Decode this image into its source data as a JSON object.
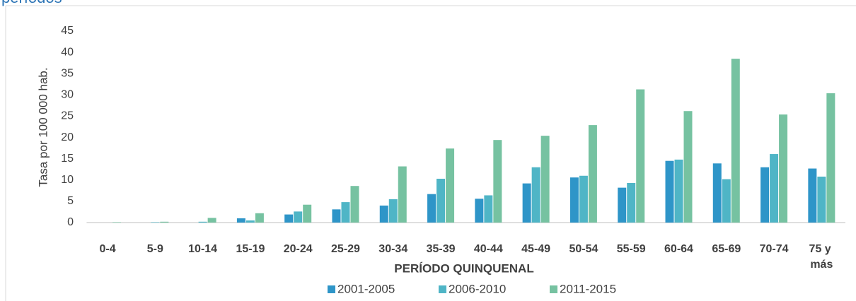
{
  "chart_data": {
    "type": "bar",
    "title": "períodos",
    "y_label": "Tasa por 100 000 hab.",
    "x_label": "PERÍODO QUINQUENAL",
    "categories": [
      "0-4",
      "5-9",
      "10-14",
      "15-19",
      "20-24",
      "25-29",
      "30-34",
      "35-39",
      "40-44",
      "45-49",
      "50-54",
      "55-59",
      "60-64",
      "65-69",
      "70-74",
      "75 y más"
    ],
    "series": [
      {
        "name": "2001-2005",
        "color": "#2e95c8",
        "values": [
          0,
          0,
          0,
          1.0,
          1.9,
          3.1,
          4.0,
          6.7,
          5.6,
          9.2,
          10.6,
          8.2,
          14.5,
          13.9,
          13.0,
          12.7
        ]
      },
      {
        "name": "2006-2010",
        "color": "#4fb5c6",
        "values": [
          0,
          0.1,
          0.2,
          0.5,
          2.6,
          4.8,
          5.5,
          10.3,
          6.4,
          13.0,
          11.0,
          9.3,
          14.8,
          10.2,
          16.1,
          10.8
        ]
      },
      {
        "name": "2011-2015",
        "color": "#76c2a1",
        "values": [
          0.1,
          0.2,
          1.1,
          2.2,
          4.2,
          8.6,
          13.2,
          17.4,
          19.4,
          20.4,
          22.9,
          31.3,
          26.2,
          38.5,
          25.4,
          30.4
        ]
      }
    ],
    "ylim": [
      0,
      45
    ],
    "yticks": [
      0,
      5,
      10,
      15,
      20,
      25,
      30,
      35,
      40,
      45
    ],
    "grid": false,
    "legend": "bottom"
  }
}
